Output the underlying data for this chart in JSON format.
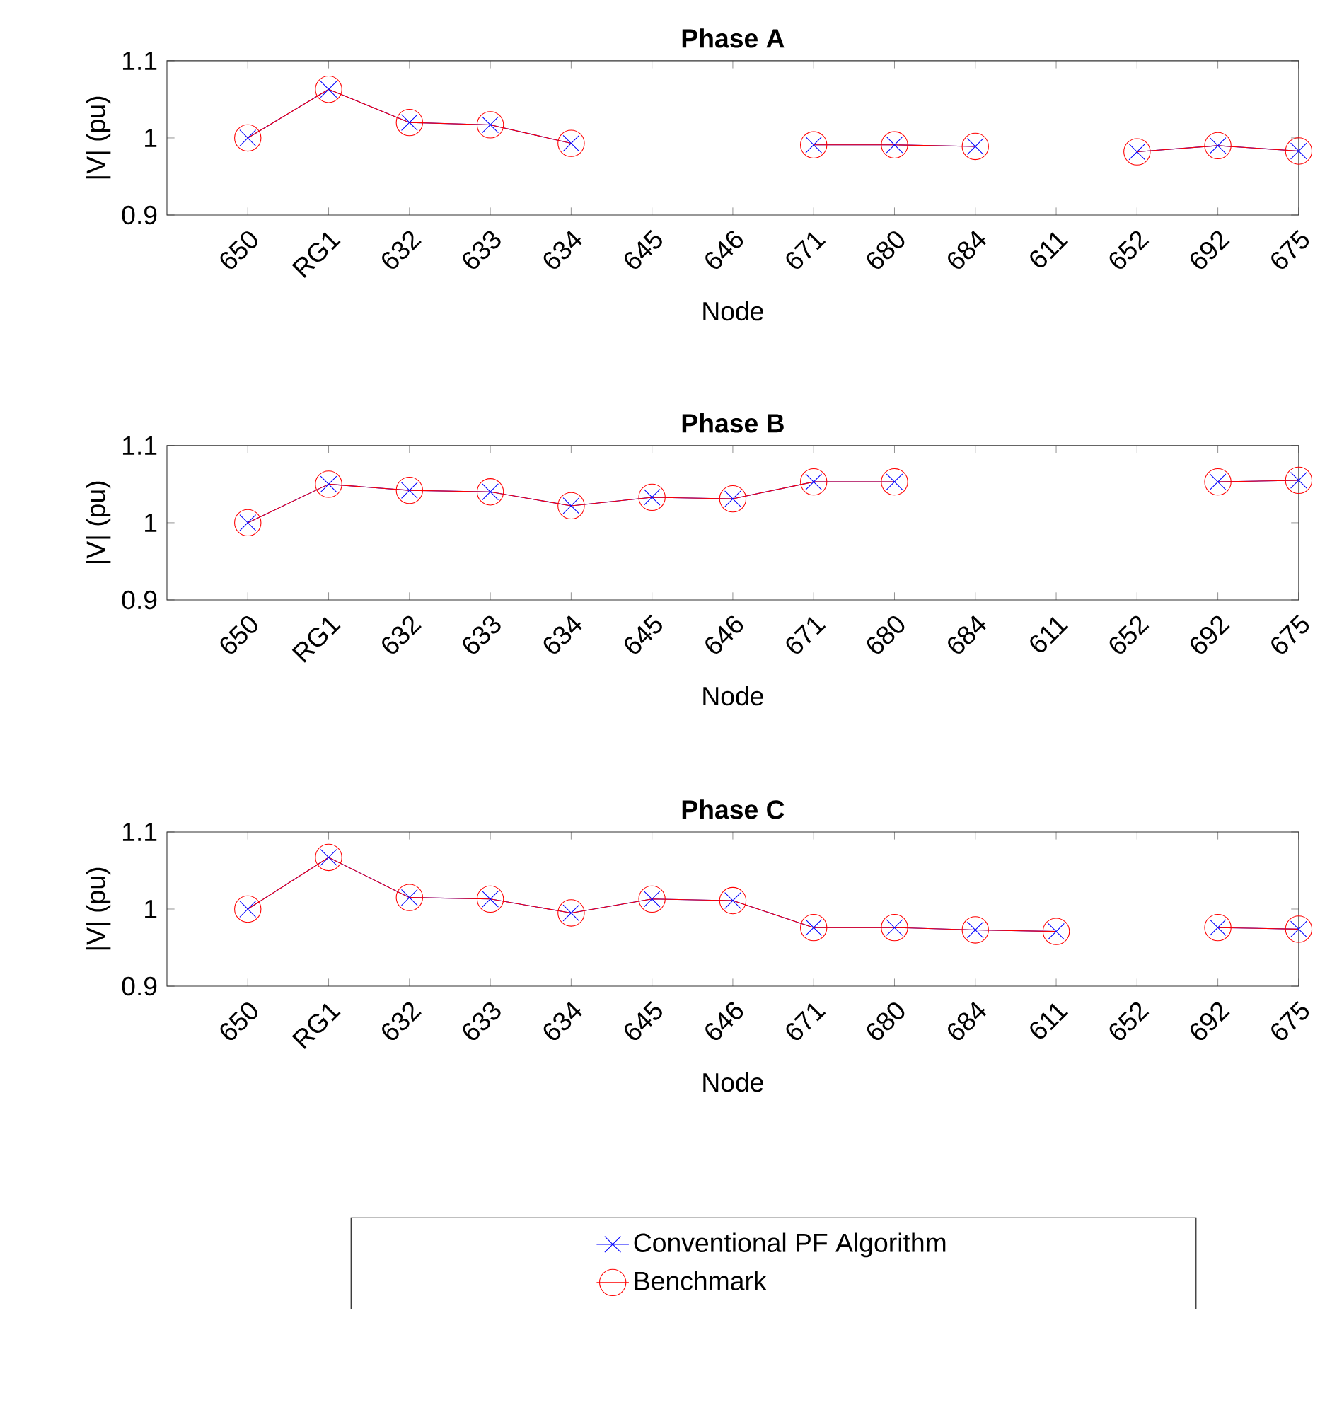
{
  "chart_data": [
    {
      "type": "line",
      "title": "Phase A",
      "xlabel": "Node",
      "ylabel": "|V| (pu)",
      "categories": [
        "650",
        "RG1",
        "632",
        "633",
        "634",
        "645",
        "646",
        "671",
        "680",
        "684",
        "611",
        "652",
        "692",
        "675"
      ],
      "ylim": [
        0.9,
        1.1
      ],
      "yticks": [
        0.9,
        1,
        1.1
      ],
      "line_style": "solid",
      "legend": "bottom",
      "series": [
        {
          "name": "Conventional PF Algorithm",
          "color": "#0000ff",
          "marker": "cross",
          "values": [
            1.0,
            1.063,
            1.02,
            1.017,
            0.993,
            null,
            null,
            0.991,
            0.991,
            0.989,
            null,
            0.982,
            0.99,
            0.983
          ]
        },
        {
          "name": "Benchmark",
          "color": "#ff0000",
          "marker": "circle",
          "values": [
            1.0,
            1.063,
            1.02,
            1.017,
            0.993,
            null,
            null,
            0.991,
            0.991,
            0.989,
            null,
            0.982,
            0.99,
            0.983
          ]
        }
      ]
    },
    {
      "type": "line",
      "title": "Phase B",
      "xlabel": "Node",
      "ylabel": "|V| (pu)",
      "categories": [
        "650",
        "RG1",
        "632",
        "633",
        "634",
        "645",
        "646",
        "671",
        "680",
        "684",
        "611",
        "652",
        "692",
        "675"
      ],
      "ylim": [
        0.9,
        1.1
      ],
      "yticks": [
        0.9,
        1,
        1.1
      ],
      "line_style": "solid",
      "series": [
        {
          "color": "#0000ff",
          "marker": "cross",
          "values": [
            1.0,
            1.05,
            1.042,
            1.04,
            1.022,
            1.033,
            1.031,
            1.053,
            1.053,
            null,
            null,
            null,
            1.053,
            1.055
          ]
        },
        {
          "color": "#ff0000",
          "marker": "circle",
          "values": [
            1.0,
            1.05,
            1.042,
            1.04,
            1.022,
            1.033,
            1.031,
            1.053,
            1.053,
            null,
            null,
            null,
            1.053,
            1.055
          ]
        }
      ]
    },
    {
      "type": "line",
      "title": "Phase C",
      "xlabel": "Node",
      "ylabel": "|V| (pu)",
      "categories": [
        "650",
        "RG1",
        "632",
        "633",
        "634",
        "645",
        "646",
        "671",
        "680",
        "684",
        "611",
        "652",
        "692",
        "675"
      ],
      "ylim": [
        0.9,
        1.1
      ],
      "yticks": [
        0.9,
        1,
        1.1
      ],
      "line_style": "solid",
      "series": [
        {
          "color": "#0000ff",
          "marker": "cross",
          "values": [
            1.0,
            1.067,
            1.015,
            1.013,
            0.995,
            1.013,
            1.011,
            0.976,
            0.976,
            0.973,
            0.971,
            null,
            0.976,
            0.974
          ]
        },
        {
          "color": "#ff0000",
          "marker": "circle",
          "values": [
            1.0,
            1.067,
            1.015,
            1.013,
            0.995,
            1.013,
            1.011,
            0.976,
            0.976,
            0.973,
            0.971,
            null,
            0.976,
            0.974
          ]
        }
      ]
    }
  ]
}
